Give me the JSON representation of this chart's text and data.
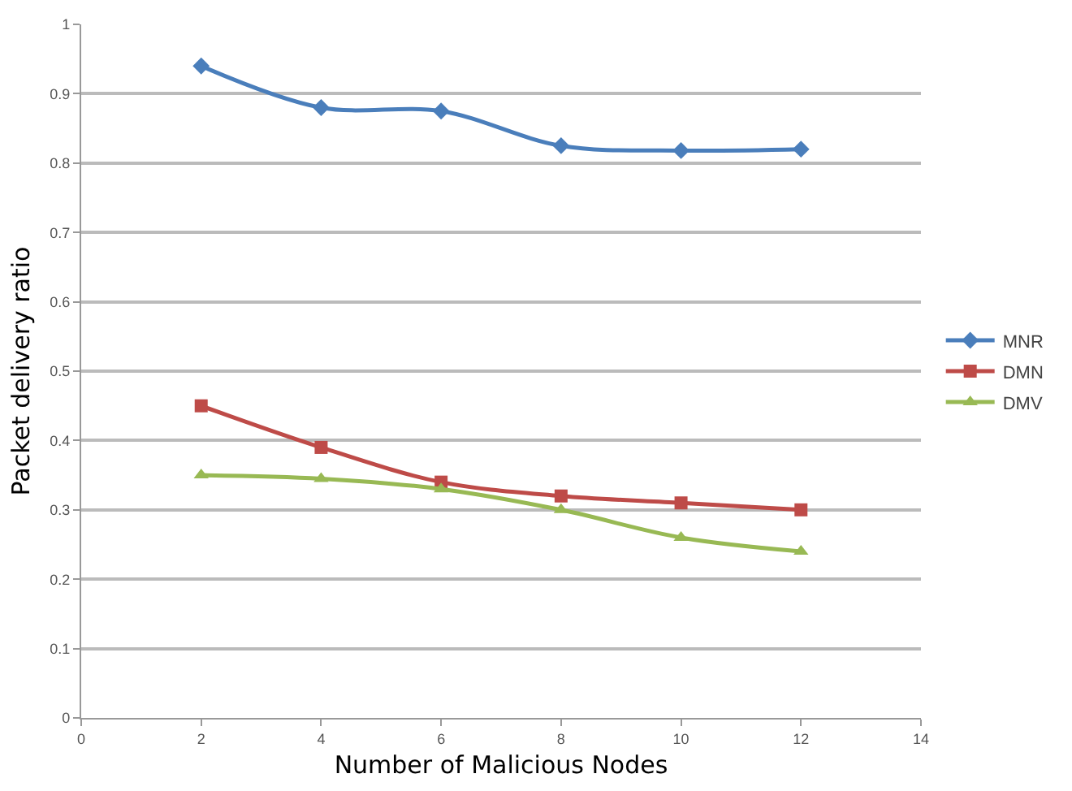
{
  "chart_data": {
    "type": "line",
    "xlabel": "Number of Malicious Nodes",
    "ylabel": "Packet delivery ratio",
    "x": [
      2,
      4,
      6,
      8,
      10,
      12
    ],
    "series": [
      {
        "name": "MNR",
        "color": "#4a7ebb",
        "marker": "diamond",
        "values": [
          0.94,
          0.88,
          0.875,
          0.825,
          0.818,
          0.82
        ]
      },
      {
        "name": "DMN",
        "color": "#be4b48",
        "marker": "square",
        "values": [
          0.45,
          0.39,
          0.34,
          0.32,
          0.31,
          0.3
        ]
      },
      {
        "name": "DMV",
        "color": "#98b954",
        "marker": "triangle",
        "values": [
          0.35,
          0.345,
          0.33,
          0.3,
          0.26,
          0.24
        ]
      }
    ],
    "xlim": [
      0,
      14
    ],
    "xticks": [
      0,
      2,
      4,
      6,
      8,
      10,
      12,
      14
    ],
    "ylim": [
      0,
      1
    ],
    "yticks": [
      0,
      0.1,
      0.2,
      0.3,
      0.4,
      0.5,
      0.6,
      0.7,
      0.8,
      0.9,
      1
    ],
    "grid": "y",
    "legend": "right",
    "line_style": "solid"
  }
}
